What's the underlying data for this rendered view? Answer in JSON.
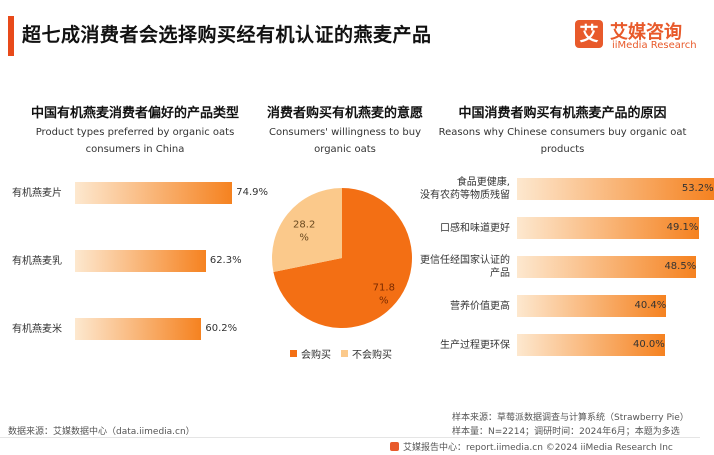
{
  "header": {
    "title": "超七成消费者会选择购买经有机认证的燕麦产品",
    "logo_mark": "艾",
    "logo_cn": "艾媒咨询",
    "logo_en": "iiMedia Research"
  },
  "colors": {
    "bar_start": "#fde8cf",
    "bar_end": "#f58220",
    "pie_buy": "#f36f14",
    "pie_not": "#fbc98b",
    "accent": "#e84a1a"
  },
  "chart_data": [
    {
      "type": "bar",
      "title": "中国有机燕麦消费者偏好的产品类型",
      "subtitle": "Product types preferred by organic oats consumers in China",
      "categories": [
        "有机燕麦片",
        "有机燕麦乳",
        "有机燕麦米"
      ],
      "values": [
        74.9,
        62.3,
        60.2
      ],
      "labels": [
        "74.9%",
        "62.3%",
        "60.2%"
      ],
      "unit": "%"
    },
    {
      "type": "pie",
      "title": "消费者购买有机燕麦的意愿",
      "subtitle": "Consumers' willingness to buy organic oats",
      "slices": [
        {
          "label": "会购买",
          "value": 71.8,
          "display_value": "71.8",
          "display_unit": "%"
        },
        {
          "label": "不会购买",
          "value": 28.2,
          "display_value": "28.2",
          "display_unit": "%"
        }
      ],
      "legend": "bottom"
    },
    {
      "type": "bar",
      "title": "中国消费者购买有机燕麦产品的原因",
      "subtitle": "Reasons why Chinese consumers buy organic oat products",
      "categories": [
        [
          "食品更健康,",
          "没有农药等物质残留"
        ],
        [
          "口感和味道更好"
        ],
        [
          "更信任经国家认证的",
          "产品"
        ],
        [
          "营养价值更高"
        ],
        [
          "生产过程更环保"
        ]
      ],
      "values": [
        53.2,
        49.1,
        48.5,
        40.4,
        40.0
      ],
      "labels": [
        "53.2%",
        "49.1%",
        "48.5%",
        "40.4%",
        "40.0%"
      ],
      "unit": "%"
    }
  ],
  "source": {
    "left": "数据来源：艾媒数据中心（data.iimedia.cn）",
    "right_line1": "样本来源：草莓派数据调查与计算系统（Strawberry Pie）",
    "right_line2": "样本量：N=2214；调研时间：2024年6月；本题为多选"
  },
  "footer": {
    "text": "艾媒报告中心：report.iimedia.cn  ©2024  iiMedia Research Inc"
  }
}
